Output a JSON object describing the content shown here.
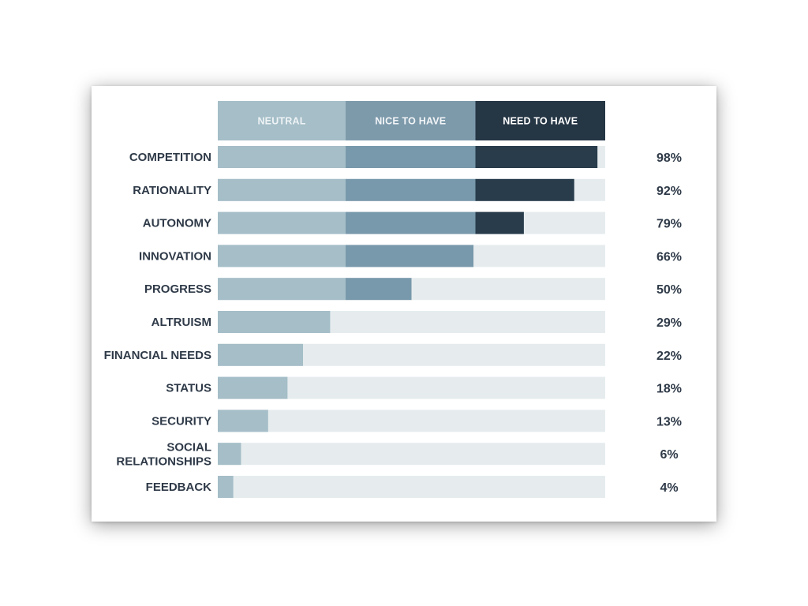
{
  "chart_data": {
    "type": "bar",
    "orientation": "horizontal",
    "stacked": true,
    "xlim": [
      0,
      100
    ],
    "segments": [
      {
        "name": "NEUTRAL",
        "max": 33,
        "color": "#a5bec8",
        "header_color": "#a5bec8",
        "text_color": "#eef3f5"
      },
      {
        "name": "NICE TO HAVE",
        "max": 33.5,
        "color": "#7899ab",
        "header_color": "#7d9aab",
        "text_color": "#f2f5f7"
      },
      {
        "name": "NEED TO HAVE",
        "max": 33.5,
        "color": "#283c4b",
        "header_color": "#253645",
        "text_color": "#ffffff"
      }
    ],
    "track_color": "#e6ecee",
    "categories": [
      {
        "label": [
          "COMPETITION"
        ],
        "value": 98,
        "display": "98%"
      },
      {
        "label": [
          "RATIONALITY"
        ],
        "value": 92,
        "display": "92%"
      },
      {
        "label": [
          "AUTONOMY"
        ],
        "value": 79,
        "display": "79%"
      },
      {
        "label": [
          "INNOVATION"
        ],
        "value": 66,
        "display": "66%"
      },
      {
        "label": [
          "PROGRESS"
        ],
        "value": 50,
        "display": "50%"
      },
      {
        "label": [
          "ALTRUISM"
        ],
        "value": 29,
        "display": "29%"
      },
      {
        "label": [
          "FINANCIAL NEEDS"
        ],
        "value": 22,
        "display": "22%"
      },
      {
        "label": [
          "STATUS"
        ],
        "value": 18,
        "display": "18%"
      },
      {
        "label": [
          "SECURITY"
        ],
        "value": 13,
        "display": "13%"
      },
      {
        "label": [
          "SOCIAL",
          "RELATIONSHIPS"
        ],
        "value": 6,
        "display": "6%"
      },
      {
        "label": [
          "FEEDBACK"
        ],
        "value": 4,
        "display": "4%"
      }
    ]
  }
}
